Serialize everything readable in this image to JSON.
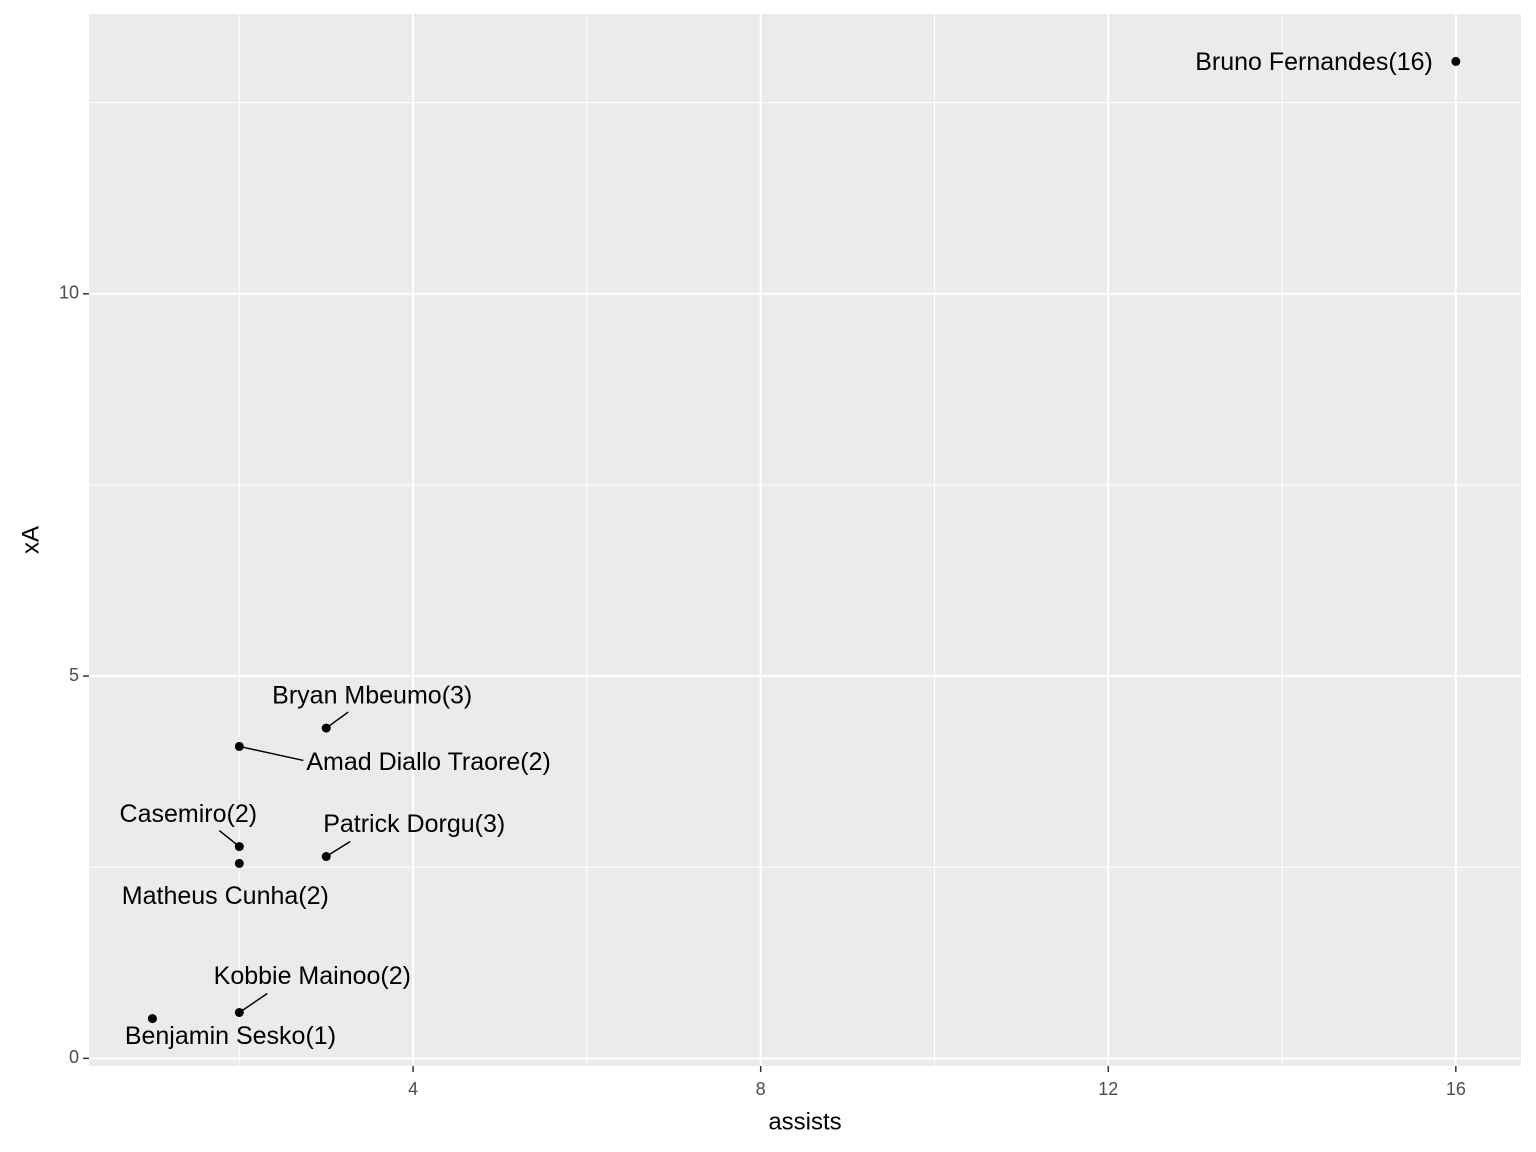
{
  "chart_data": {
    "type": "scatter",
    "x_label": "assists",
    "y_label": "xA",
    "labels": [
      "Bruno Fernandes(16)",
      "Bryan Mbeumo(3)",
      "Amad Diallo Traore(2)",
      "Casemiro(2)",
      "Patrick Dorgu(3)",
      "Matheus Cunha(2)",
      "Kobbie Mainoo(2)",
      "Benjamin Sesko(1)"
    ],
    "x": [
      16,
      3,
      2,
      2,
      3,
      2,
      2,
      1
    ],
    "values": [
      13.04,
      4.32,
      4.08,
      2.77,
      2.64,
      2.55,
      0.6,
      0.52
    ],
    "color": "#000000",
    "xlim": [
      0.27,
      16.75
    ],
    "ylim": [
      -0.1,
      13.66
    ],
    "xticks": [
      4,
      8,
      12,
      16
    ],
    "yticks": [
      0,
      5,
      10
    ],
    "grid": true
  }
}
